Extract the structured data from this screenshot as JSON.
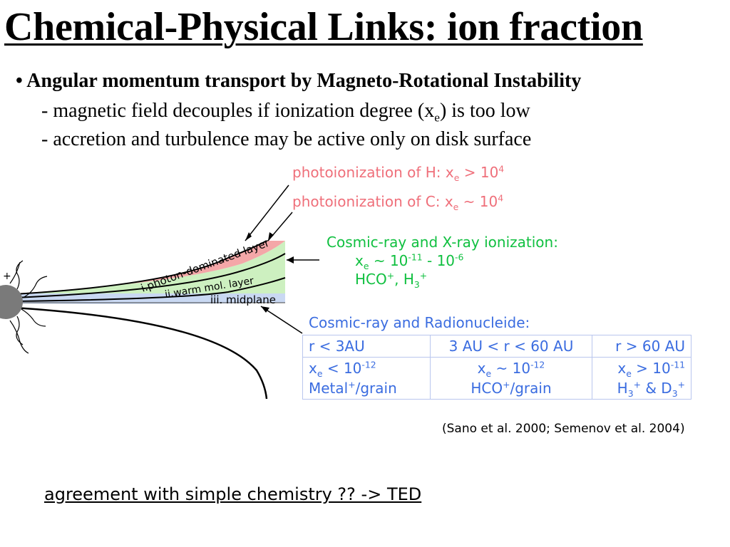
{
  "title": "Chemical-Physical Links: ion fraction",
  "bullet": {
    "marker": "•",
    "text": "Angular momentum transport by Magneto-Rotational Instability"
  },
  "sub1": {
    "pre": "- magnetic field decouples if ionization degree (x",
    "sub": "e",
    "post": ") is too low"
  },
  "sub2": {
    "text": "- accretion and turbulence may be active only on disk surface"
  },
  "annotations": {
    "photoH": {
      "pre": "photoionization of H: x",
      "sub": "e",
      "mid": " > 10",
      "sup": "4"
    },
    "photoC": {
      "pre": "photoionization of C: x",
      "sub": "e",
      "mid": " ~ 10",
      "sup": "4"
    },
    "cosmicX": {
      "line1": "Cosmic-ray and X-ray ionization:",
      "line2": {
        "x": "x",
        "sub": "e",
        "mid1": " ~ 10",
        "sup1": "-11",
        "mid2": " - 10",
        "sup2": "-6"
      },
      "line3": {
        "a": "HCO",
        "sup1": "+",
        "b": ", H",
        "sub": "3",
        "sup2": "+"
      }
    },
    "cosmicR": {
      "line1": "Cosmic-ray and Radionucleide:"
    }
  },
  "diagram": {
    "layer_labels": {
      "photon": "i.photon-dominated layer",
      "warm": "ii.warm mol. layer",
      "mid": "iii. midplane"
    },
    "colors": {
      "photon": "#f4a7a8",
      "warm": "#cdf0c0",
      "mid": "#c9d8f2"
    }
  },
  "table": {
    "headers": [
      "r < 3AU",
      "3 AU < r < 60 AU",
      "r > 60 AU"
    ],
    "row1": [
      {
        "x": "x",
        "sub": "e",
        "mid": " < 10",
        "sup": "-12"
      },
      {
        "x": "x",
        "sub": "e",
        "mid": " ~ 10",
        "sup": "-12"
      },
      {
        "x": "x",
        "sub": "e",
        "mid": " > 10",
        "sup": "-11"
      }
    ],
    "row2": [
      {
        "a": "Metal",
        "sup": "+",
        "b": "/grain"
      },
      {
        "a": "HCO",
        "sup": "+",
        "b": "/grain"
      },
      {
        "a": "H",
        "sub1": "3",
        "sup1": "+",
        "b": " & D",
        "sub2": "3",
        "sup2": "+"
      }
    ]
  },
  "citation": "(Sano et al. 2000; Semenov et al. 2004)",
  "bottom_link": "agreement with simple chemistry ?? -> TED"
}
